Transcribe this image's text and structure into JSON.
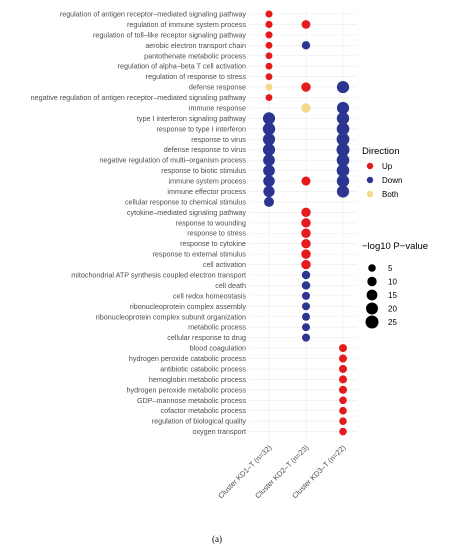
{
  "chart_data": {
    "type": "scatter",
    "title": "",
    "xlabel": "",
    "ylabel": "",
    "x_categories": [
      "Cluster KD1–T (n=32)",
      "Cluster KD2–T (n=23)",
      "Cluster KD3–T (n=22)"
    ],
    "terms": [
      "regulation of antigen receptor–mediated signaling pathway",
      "regulation of immune system process",
      "regulation of toll–like receptor signaling pathway",
      "aerobic electron transport chain",
      "pantothenate metabolic process",
      "regulation of alpha–beta T cell activation",
      "regulation of response to stress",
      "defense response",
      "negative regulation of antigen receptor–mediated signaling pathway",
      "immune response",
      "type I interferon signaling pathway",
      "response to type I interferon",
      "response to virus",
      "defense response to virus",
      "negative regulation of multi–organism process",
      "response to biotic stimulus",
      "immune system process",
      "immune effector process",
      "cellular response to chemical stimulus",
      "cytokine–mediated signaling pathway",
      "response to wounding",
      "response to stress",
      "response to cytokine",
      "response to external stimulus",
      "cell activation",
      "mitochondrial ATP synthesis coupled electron transport",
      "cell death",
      "cell redox homeostasis",
      "ribonucleoprotein complex assembly",
      "ribonucleoprotein complex subunit organization",
      "metabolic process",
      "cellular response to drug",
      "blood coagulation",
      "hydrogen peroxide catabolic process",
      "antibiotic catabolic process",
      "hemoglobin metabolic process",
      "hydrogen peroxide metabolic process",
      "GDP–mannose metabolic process",
      "cofactor metabolic process",
      "regulation of biological quality",
      "oxygen transport"
    ],
    "points": [
      {
        "x": 0,
        "y": 0,
        "dir": "Up",
        "size": 4
      },
      {
        "x": 0,
        "y": 1,
        "dir": "Up",
        "size": 4
      },
      {
        "x": 1,
        "y": 1,
        "dir": "Up",
        "size": 8
      },
      {
        "x": 0,
        "y": 2,
        "dir": "Up",
        "size": 4
      },
      {
        "x": 0,
        "y": 3,
        "dir": "Up",
        "size": 3.5
      },
      {
        "x": 1,
        "y": 3,
        "dir": "Down",
        "size": 7
      },
      {
        "x": 0,
        "y": 4,
        "dir": "Up",
        "size": 3.5
      },
      {
        "x": 0,
        "y": 5,
        "dir": "Up",
        "size": 3.5
      },
      {
        "x": 0,
        "y": 6,
        "dir": "Up",
        "size": 3.5
      },
      {
        "x": 0,
        "y": 7,
        "dir": "Both",
        "size": 3.5
      },
      {
        "x": 1,
        "y": 7,
        "dir": "Up",
        "size": 10
      },
      {
        "x": 2,
        "y": 7,
        "dir": "Down",
        "size": 21
      },
      {
        "x": 0,
        "y": 8,
        "dir": "Up",
        "size": 3.5
      },
      {
        "x": 1,
        "y": 9,
        "dir": "Both",
        "size": 10
      },
      {
        "x": 2,
        "y": 9,
        "dir": "Down",
        "size": 21
      },
      {
        "x": 0,
        "y": 10,
        "dir": "Down",
        "size": 21
      },
      {
        "x": 2,
        "y": 10,
        "dir": "Down",
        "size": 22
      },
      {
        "x": 0,
        "y": 11,
        "dir": "Down",
        "size": 22
      },
      {
        "x": 2,
        "y": 11,
        "dir": "Down",
        "size": 23
      },
      {
        "x": 0,
        "y": 12,
        "dir": "Down",
        "size": 21
      },
      {
        "x": 2,
        "y": 12,
        "dir": "Down",
        "size": 24
      },
      {
        "x": 0,
        "y": 13,
        "dir": "Down",
        "size": 21
      },
      {
        "x": 2,
        "y": 13,
        "dir": "Down",
        "size": 25
      },
      {
        "x": 0,
        "y": 14,
        "dir": "Down",
        "size": 19
      },
      {
        "x": 2,
        "y": 14,
        "dir": "Down",
        "size": 23
      },
      {
        "x": 0,
        "y": 15,
        "dir": "Down",
        "size": 19
      },
      {
        "x": 2,
        "y": 15,
        "dir": "Down",
        "size": 23
      },
      {
        "x": 0,
        "y": 16,
        "dir": "Down",
        "size": 18
      },
      {
        "x": 1,
        "y": 16,
        "dir": "Up",
        "size": 9
      },
      {
        "x": 2,
        "y": 16,
        "dir": "Down",
        "size": 22
      },
      {
        "x": 0,
        "y": 17,
        "dir": "Down",
        "size": 17
      },
      {
        "x": 2,
        "y": 17,
        "dir": "Down",
        "size": 21
      },
      {
        "x": 0,
        "y": 18,
        "dir": "Down",
        "size": 12
      },
      {
        "x": 1,
        "y": 19,
        "dir": "Up",
        "size": 10
      },
      {
        "x": 1,
        "y": 20,
        "dir": "Up",
        "size": 10
      },
      {
        "x": 1,
        "y": 21,
        "dir": "Up",
        "size": 10
      },
      {
        "x": 1,
        "y": 22,
        "dir": "Up",
        "size": 10
      },
      {
        "x": 1,
        "y": 23,
        "dir": "Up",
        "size": 10
      },
      {
        "x": 1,
        "y": 24,
        "dir": "Up",
        "size": 10
      },
      {
        "x": 1,
        "y": 25,
        "dir": "Down",
        "size": 7
      },
      {
        "x": 1,
        "y": 26,
        "dir": "Down",
        "size": 7
      },
      {
        "x": 1,
        "y": 27,
        "dir": "Down",
        "size": 6
      },
      {
        "x": 1,
        "y": 28,
        "dir": "Down",
        "size": 6
      },
      {
        "x": 1,
        "y": 29,
        "dir": "Down",
        "size": 6
      },
      {
        "x": 1,
        "y": 30,
        "dir": "Down",
        "size": 6
      },
      {
        "x": 1,
        "y": 31,
        "dir": "Down",
        "size": 6
      },
      {
        "x": 2,
        "y": 32,
        "dir": "Up",
        "size": 6
      },
      {
        "x": 2,
        "y": 33,
        "dir": "Up",
        "size": 6
      },
      {
        "x": 2,
        "y": 34,
        "dir": "Up",
        "size": 6
      },
      {
        "x": 2,
        "y": 35,
        "dir": "Up",
        "size": 6
      },
      {
        "x": 2,
        "y": 36,
        "dir": "Up",
        "size": 6
      },
      {
        "x": 2,
        "y": 37,
        "dir": "Up",
        "size": 5
      },
      {
        "x": 2,
        "y": 38,
        "dir": "Up",
        "size": 5
      },
      {
        "x": 2,
        "y": 39,
        "dir": "Up",
        "size": 5
      },
      {
        "x": 2,
        "y": 40,
        "dir": "Up",
        "size": 5
      }
    ],
    "legend": {
      "placement": "right",
      "direction_title": "Direction",
      "directions": [
        {
          "label": "Up",
          "color": "#e41a1c"
        },
        {
          "label": "Down",
          "color": "#2c3590"
        },
        {
          "label": "Both",
          "color": "#f5d78a"
        }
      ],
      "size_title": "−log10 P−value",
      "sizes": [
        5,
        10,
        15,
        20,
        25
      ]
    },
    "grid": true
  },
  "caption": "(a)"
}
